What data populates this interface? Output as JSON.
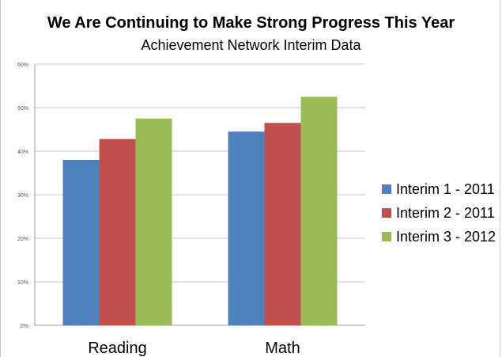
{
  "chart_data": {
    "type": "bar",
    "title": "We Are Continuing to Make Strong Progress This Year",
    "subtitle": "Achievement Network Interim Data",
    "categories": [
      "Reading",
      "Math"
    ],
    "series": [
      {
        "name": "Interim 1 - 2011",
        "values": [
          38,
          44.5
        ],
        "color": "#4f81bd"
      },
      {
        "name": "Interim 2 - 2011",
        "values": [
          42.8,
          46.5
        ],
        "color": "#c0504d"
      },
      {
        "name": "Interim 3 - 2012",
        "values": [
          47.5,
          52.5
        ],
        "color": "#9bbb59"
      }
    ],
    "yticks": [
      "0%",
      "10%",
      "20%",
      "30%",
      "40%",
      "50%",
      "60%"
    ],
    "ylim": [
      0,
      60
    ],
    "grid": true,
    "legend_position": "right"
  }
}
